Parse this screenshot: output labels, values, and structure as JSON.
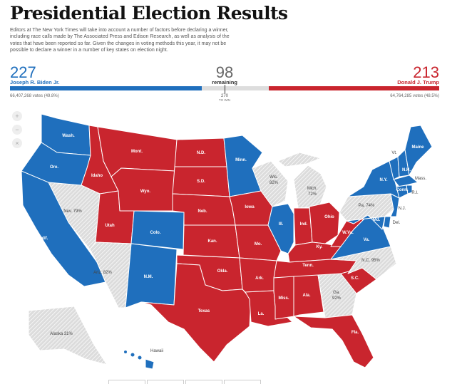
{
  "header": {
    "title": "Presidential Election Results",
    "intro": "Editors at The New York Times will take into account a number of factors before declaring a winner, including race calls made by The Associated Press and Edison Research, as well as analysis of the votes that have been reported so far. Given the changes in voting methods this year, it may not be possible to declare a winner in a number of key states on election night."
  },
  "tally": {
    "biden": {
      "votes_electoral": "227",
      "name": "Joseph R. Biden Jr.",
      "popular": "66,407,268 votes (49.8%)",
      "share": 0.4466
    },
    "trump": {
      "votes_electoral": "213",
      "name": "Donald J. Trump",
      "popular": "64,764,285 votes (48.5%)",
      "share": 0.3964
    },
    "remaining": {
      "count": "98",
      "label": "remaining"
    },
    "to_win": {
      "count": "270",
      "label": "TO WIN"
    }
  },
  "colors": {
    "dem": "#1f6fbd",
    "rep": "#c9252e",
    "pending": "#dcdcdc",
    "pending_stripe": "#ffffff"
  },
  "zoom_controls": [
    {
      "icon": "zoom-in-icon",
      "glyph": "+"
    },
    {
      "icon": "zoom-out-icon",
      "glyph": "−"
    },
    {
      "icon": "reset-icon",
      "glyph": "×"
    }
  ],
  "states": {
    "wash": "Wash.",
    "ore": "Ore.",
    "calif": "Calif.",
    "idaho": "Idaho",
    "nev": "Nev. 79%",
    "utah": "Utah",
    "ariz": "Ariz. 82%",
    "mont": "Mont.",
    "wyo": "Wyo.",
    "colo": "Colo.",
    "nm": "N.M.",
    "nd": "N.D.",
    "sd": "S.D.",
    "neb": "Neb.",
    "kan": "Kan.",
    "okla": "Okla.",
    "texas": "Texas",
    "minn": "Minn.",
    "iowa": "Iowa",
    "mo": "Mo.",
    "ark": "Ark.",
    "la": "La.",
    "wis": "Wis.",
    "wis_pct": "82%",
    "mich": "Mich.",
    "mich_pct": "72%",
    "ill": "Ill.",
    "ind": "Ind.",
    "ohio": "Ohio",
    "ky": "Ky.",
    "tenn": "Tenn.",
    "miss": "Miss.",
    "ala": "Ala.",
    "ga": "Ga.",
    "ga_pct": "92%",
    "fla": "Fla.",
    "sc": "S.C.",
    "nc": "N.C. 95%",
    "va": "Va.",
    "wva": "W.Va.",
    "pa": "Pa. 74%",
    "ny": "N.Y.",
    "vt": "Vt.",
    "nh": "N.H.",
    "maine": "Maine",
    "mass": "Mass.",
    "conn": "Conn.",
    "ri": "R.I.",
    "nj": "N.J.",
    "del": "Del.",
    "md": "Md.",
    "alaska": "Alaska 31%",
    "hawaii": "Hawaii"
  }
}
